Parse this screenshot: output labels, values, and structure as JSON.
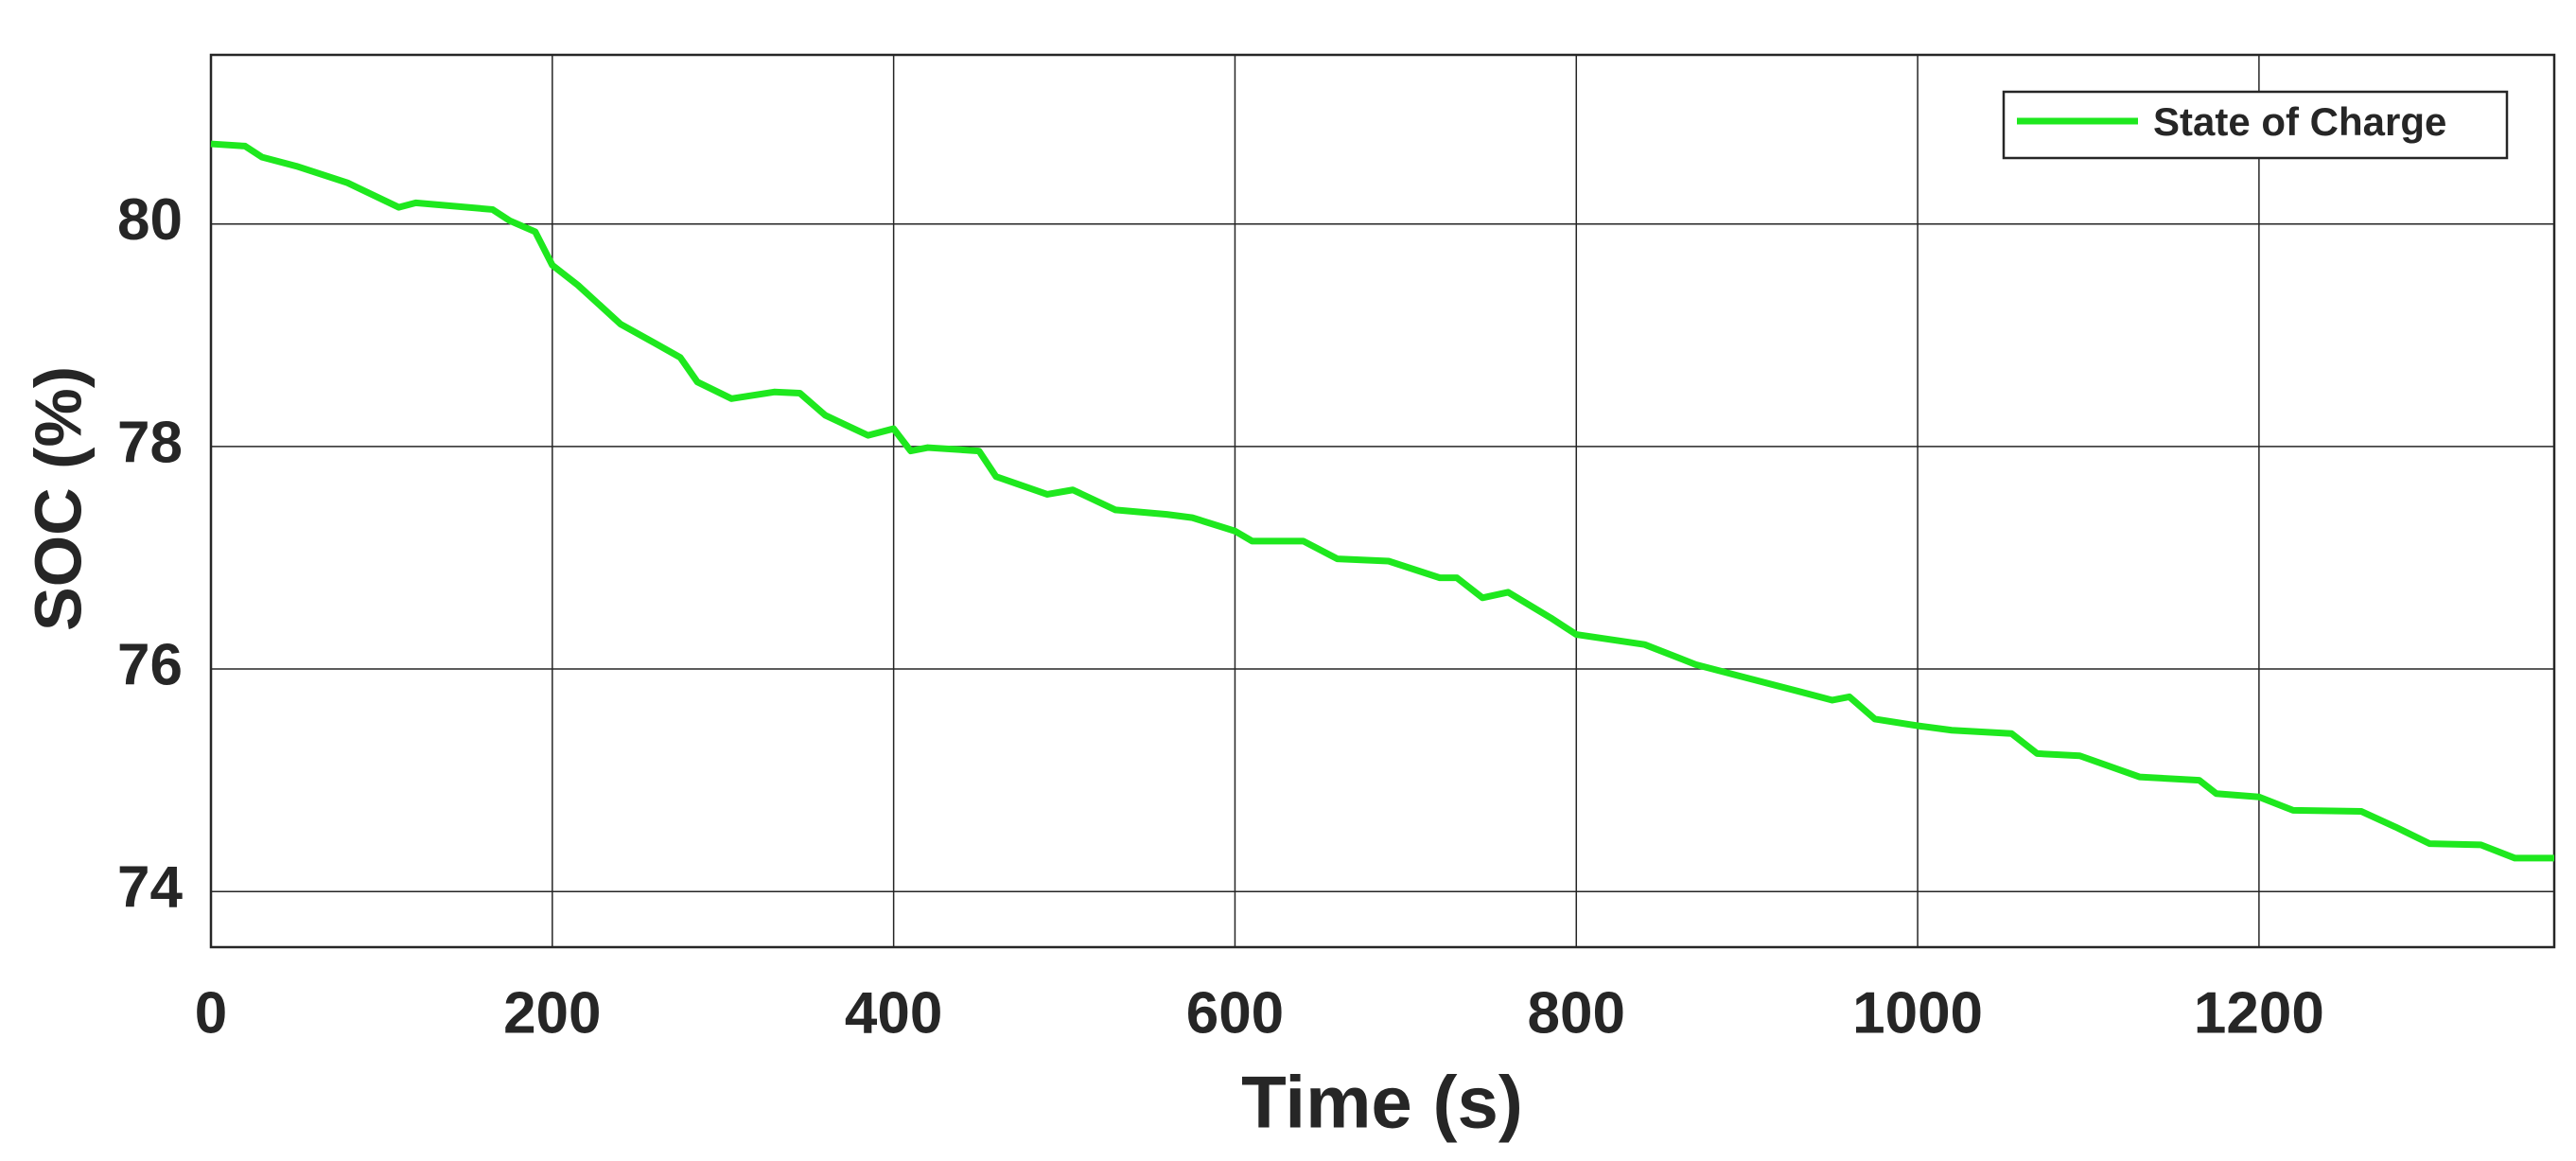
{
  "chart_data": {
    "type": "line",
    "xlabel": "Time (s)",
    "ylabel": "SOC (%)",
    "x": [
      0,
      20,
      30,
      50,
      80,
      110,
      120,
      165,
      175,
      190,
      200,
      215,
      240,
      260,
      275,
      285,
      305,
      330,
      345,
      360,
      385,
      400,
      410,
      420,
      450,
      460,
      490,
      505,
      530,
      560,
      575,
      600,
      610,
      640,
      660,
      690,
      720,
      730,
      745,
      760,
      785,
      800,
      840,
      870,
      900,
      950,
      960,
      975,
      1000,
      1020,
      1055,
      1070,
      1095,
      1130,
      1165,
      1175,
      1200,
      1220,
      1260,
      1280,
      1300,
      1330,
      1350,
      1373
    ],
    "series": [
      {
        "name": "State of Charge",
        "color": "#1ee81e",
        "values": [
          80.72,
          80.7,
          80.6,
          80.52,
          80.37,
          80.15,
          80.19,
          80.13,
          80.03,
          79.93,
          79.63,
          79.45,
          79.1,
          78.93,
          78.8,
          78.58,
          78.43,
          78.49,
          78.48,
          78.28,
          78.1,
          78.16,
          77.96,
          77.99,
          77.96,
          77.73,
          77.57,
          77.61,
          77.43,
          77.39,
          77.36,
          77.24,
          77.15,
          77.15,
          76.99,
          76.97,
          76.82,
          76.82,
          76.64,
          76.69,
          76.46,
          76.31,
          76.22,
          76.04,
          75.92,
          75.72,
          75.75,
          75.55,
          75.49,
          75.45,
          75.42,
          75.24,
          75.22,
          75.03,
          75.0,
          74.88,
          74.85,
          74.73,
          74.72,
          74.58,
          74.43,
          74.42,
          74.3,
          74.3
        ]
      }
    ],
    "xlim": [
      0,
      1373
    ],
    "xticks": [
      0,
      200,
      400,
      600,
      800,
      1000,
      1200
    ],
    "ylim": [
      73.5,
      81.52
    ],
    "yticks": [
      74,
      76,
      78,
      80
    ],
    "grid": true,
    "legend": "upper-right"
  }
}
